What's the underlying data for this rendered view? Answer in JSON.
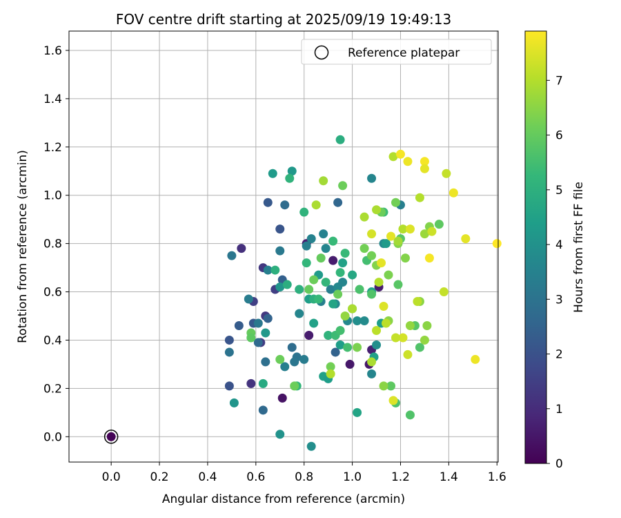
{
  "chart_data": {
    "type": "scatter",
    "title": "FOV centre drift starting at 2025/09/19 19:49:13",
    "xlabel": "Angular distance from reference (arcmin)",
    "ylabel": "Rotation from reference (arcmin)",
    "xlim": [
      -0.175,
      1.605
    ],
    "ylim": [
      -0.105,
      1.68
    ],
    "xticks": [
      0.0,
      0.2,
      0.4,
      0.6,
      0.8,
      1.0,
      1.2,
      1.4,
      1.6
    ],
    "xtick_labels": [
      "0.0",
      "0.2",
      "0.4",
      "0.6",
      "0.8",
      "1.0",
      "1.2",
      "1.4",
      "1.6"
    ],
    "yticks": [
      0.0,
      0.2,
      0.4,
      0.6,
      0.8,
      1.0,
      1.2,
      1.4,
      1.6
    ],
    "ytick_labels": [
      "0.0",
      "0.2",
      "0.4",
      "0.6",
      "0.8",
      "1.0",
      "1.2",
      "1.4",
      "1.6"
    ],
    "grid": true,
    "legend": {
      "placement": "top-right",
      "entries": [
        "Reference platepar"
      ]
    },
    "reference_point": {
      "label": "Reference platepar",
      "x": 0.0,
      "y": 0.0
    },
    "colorbar": {
      "label": "Hours from first FF file",
      "range": [
        0,
        7.9
      ],
      "ticks": [
        0,
        1,
        2,
        3,
        4,
        5,
        6,
        7
      ],
      "tick_labels": [
        "0",
        "1",
        "2",
        "3",
        "4",
        "5",
        "6",
        "7"
      ],
      "colormap_stops": [
        "#440154",
        "#482878",
        "#3e4989",
        "#31688e",
        "#26828e",
        "#1f9e89",
        "#35b779",
        "#6ece58",
        "#b5de2b",
        "#fde725"
      ]
    },
    "series": [
      {
        "name": "FOV centre drift",
        "points": [
          [
            0.0,
            0.0,
            0.05
          ],
          [
            0.54,
            0.78,
            1.1
          ],
          [
            0.59,
            0.56,
            1.5
          ],
          [
            0.58,
            0.22,
            1.2
          ],
          [
            0.71,
            0.16,
            0.4
          ],
          [
            0.82,
            0.42,
            0.6
          ],
          [
            0.62,
            0.39,
            1.4
          ],
          [
            0.64,
            0.5,
            1.3
          ],
          [
            0.68,
            0.61,
            1.5
          ],
          [
            0.81,
            0.8,
            0.7
          ],
          [
            0.92,
            0.73,
            0.6
          ],
          [
            0.99,
            0.3,
            0.5
          ],
          [
            1.08,
            0.36,
            0.7
          ],
          [
            1.11,
            0.62,
            0.6
          ],
          [
            1.07,
            0.3,
            0.5
          ],
          [
            0.63,
            0.7,
            1.3
          ],
          [
            0.49,
            0.21,
            2.0
          ],
          [
            0.49,
            0.4,
            2.1
          ],
          [
            0.53,
            0.46,
            2.3
          ],
          [
            0.59,
            0.47,
            2.2
          ],
          [
            0.65,
            0.97,
            2.2
          ],
          [
            0.7,
            0.86,
            2.1
          ],
          [
            0.71,
            0.65,
            2.4
          ],
          [
            0.63,
            0.11,
            2.7
          ],
          [
            0.64,
            0.31,
            2.9
          ],
          [
            0.61,
            0.39,
            2.7
          ],
          [
            0.65,
            0.49,
            2.5
          ],
          [
            0.72,
            0.96,
            2.8
          ],
          [
            0.75,
            0.37,
            2.8
          ],
          [
            0.77,
            0.33,
            3.0
          ],
          [
            0.93,
            0.35,
            2.5
          ],
          [
            0.94,
            0.97,
            2.6
          ],
          [
            0.49,
            0.35,
            3.0
          ],
          [
            0.5,
            0.75,
            3.1
          ],
          [
            0.57,
            0.57,
            3.3
          ],
          [
            0.61,
            0.47,
            3.2
          ],
          [
            0.65,
            0.69,
            3.4
          ],
          [
            0.7,
            0.77,
            3.2
          ],
          [
            0.72,
            0.29,
            3.4
          ],
          [
            0.76,
            0.31,
            3.1
          ],
          [
            0.78,
            0.51,
            3.6
          ],
          [
            0.8,
            0.32,
            3.3
          ],
          [
            0.81,
            0.79,
            3.4
          ],
          [
            0.83,
            0.82,
            3.5
          ],
          [
            0.87,
            0.56,
            3.4
          ],
          [
            0.88,
            0.84,
            3.5
          ],
          [
            0.89,
            0.78,
            3.6
          ],
          [
            0.91,
            0.61,
            3.4
          ],
          [
            0.93,
            0.55,
            3.7
          ],
          [
            0.94,
            0.62,
            3.7
          ],
          [
            0.96,
            0.64,
            3.6
          ],
          [
            0.98,
            0.48,
            3.7
          ],
          [
            1.02,
            0.48,
            3.9
          ],
          [
            1.05,
            0.48,
            3.8
          ],
          [
            1.08,
            0.26,
            3.6
          ],
          [
            1.1,
            0.38,
            3.9
          ],
          [
            1.13,
            0.8,
            3.7
          ],
          [
            1.08,
            1.07,
            3.6
          ],
          [
            1.2,
            0.96,
            3.4
          ],
          [
            0.83,
            -0.04,
            3.9
          ],
          [
            0.7,
            0.01,
            4.0
          ],
          [
            0.51,
            0.14,
            4.1
          ],
          [
            0.64,
            0.43,
            4.2
          ],
          [
            0.67,
            1.09,
            4.3
          ],
          [
            0.75,
            1.1,
            4.2
          ],
          [
            0.7,
            0.62,
            4.1
          ],
          [
            0.82,
            0.57,
            4.4
          ],
          [
            0.84,
            0.47,
            4.5
          ],
          [
            0.86,
            0.67,
            4.3
          ],
          [
            0.88,
            0.25,
            4.5
          ],
          [
            0.9,
            0.24,
            4.4
          ],
          [
            0.92,
            0.55,
            4.6
          ],
          [
            0.95,
            0.38,
            4.4
          ],
          [
            0.96,
            0.72,
            4.5
          ],
          [
            1.0,
            0.67,
            4.7
          ],
          [
            1.02,
            0.1,
            4.6
          ],
          [
            1.08,
            0.6,
            4.5
          ],
          [
            1.09,
            0.33,
            4.5
          ],
          [
            1.12,
            0.47,
            4.4
          ],
          [
            1.14,
            0.8,
            4.3
          ],
          [
            0.95,
            1.23,
            4.9
          ],
          [
            0.63,
            0.22,
            4.8
          ],
          [
            0.68,
            0.69,
            5.0
          ],
          [
            0.73,
            0.63,
            4.9
          ],
          [
            0.74,
            1.07,
            5.1
          ],
          [
            0.77,
            0.21,
            5.2
          ],
          [
            0.78,
            0.61,
            5.0
          ],
          [
            0.8,
            0.93,
            5.1
          ],
          [
            0.81,
            0.72,
            5.2
          ],
          [
            0.84,
            0.57,
            5.0
          ],
          [
            0.86,
            0.57,
            5.3
          ],
          [
            0.89,
            0.64,
            5.2
          ],
          [
            0.9,
            0.42,
            5.1
          ],
          [
            0.92,
            0.81,
            5.3
          ],
          [
            0.93,
            0.42,
            5.4
          ],
          [
            0.95,
            0.44,
            5.5
          ],
          [
            0.95,
            0.68,
            5.2
          ],
          [
            0.97,
            0.76,
            5.3
          ],
          [
            0.98,
            0.37,
            5.5
          ],
          [
            1.0,
            0.53,
            5.4
          ],
          [
            1.03,
            0.61,
            5.6
          ],
          [
            1.06,
            0.73,
            5.5
          ],
          [
            1.08,
            0.59,
            5.7
          ],
          [
            1.13,
            0.93,
            5.4
          ],
          [
            1.2,
            0.82,
            5.8
          ],
          [
            1.19,
            0.63,
            5.8
          ],
          [
            1.28,
            0.37,
            5.7
          ],
          [
            1.26,
            0.46,
            5.8
          ],
          [
            1.18,
            0.14,
            5.6
          ],
          [
            1.24,
            0.09,
            5.7
          ],
          [
            1.16,
            0.21,
            5.9
          ],
          [
            1.36,
            0.88,
            5.9
          ],
          [
            0.58,
            0.43,
            6.0
          ],
          [
            0.58,
            0.41,
            5.9
          ],
          [
            0.7,
            0.32,
            6.1
          ],
          [
            0.76,
            0.21,
            6.1
          ],
          [
            0.82,
            0.61,
            6.0
          ],
          [
            0.84,
            0.65,
            6.1
          ],
          [
            0.87,
            0.74,
            6.0
          ],
          [
            0.91,
            0.29,
            6.2
          ],
          [
            0.94,
            0.59,
            6.1
          ],
          [
            0.96,
            1.04,
            6.1
          ],
          [
            1.02,
            0.37,
            6.3
          ],
          [
            1.05,
            0.78,
            6.2
          ],
          [
            1.08,
            0.75,
            6.2
          ],
          [
            1.1,
            0.71,
            6.4
          ],
          [
            1.12,
            0.93,
            6.1
          ],
          [
            1.13,
            0.21,
            6.5
          ],
          [
            1.15,
            0.48,
            6.5
          ],
          [
            1.18,
            0.97,
            6.2
          ],
          [
            1.19,
            0.8,
            6.4
          ],
          [
            1.22,
            0.74,
            6.4
          ],
          [
            1.24,
            0.46,
            6.6
          ],
          [
            1.28,
            0.56,
            6.5
          ],
          [
            1.3,
            0.4,
            6.6
          ],
          [
            1.31,
            0.46,
            6.5
          ],
          [
            1.32,
            0.87,
            6.4
          ],
          [
            1.3,
            0.84,
            6.7
          ],
          [
            1.08,
            0.31,
            6.9
          ],
          [
            1.1,
            0.94,
            6.9
          ],
          [
            1.11,
            0.64,
            7.0
          ],
          [
            1.14,
            0.47,
            7.1
          ],
          [
            1.17,
            1.16,
            7.0
          ],
          [
            1.19,
            0.81,
            6.8
          ],
          [
            1.21,
            0.86,
            7.0
          ],
          [
            1.23,
            0.34,
            7.3
          ],
          [
            1.27,
            0.56,
            7.1
          ],
          [
            1.28,
            0.99,
            7.0
          ],
          [
            1.33,
            0.85,
            7.3
          ],
          [
            1.38,
            0.6,
            7.2
          ],
          [
            1.39,
            1.09,
            7.2
          ],
          [
            1.05,
            0.91,
            6.9
          ],
          [
            0.85,
            0.96,
            6.9
          ],
          [
            0.88,
            1.06,
            6.8
          ],
          [
            0.91,
            0.26,
            7.0
          ],
          [
            1.0,
            0.53,
            6.9
          ],
          [
            1.08,
            0.84,
            7.4
          ],
          [
            1.12,
            0.72,
            7.6
          ],
          [
            1.13,
            0.54,
            7.5
          ],
          [
            1.17,
            0.15,
            7.5
          ],
          [
            1.2,
            1.17,
            7.8
          ],
          [
            1.21,
            0.41,
            7.4
          ],
          [
            1.23,
            1.14,
            7.7
          ],
          [
            1.24,
            0.86,
            7.5
          ],
          [
            1.3,
            1.14,
            7.8
          ],
          [
            1.3,
            1.11,
            7.6
          ],
          [
            1.32,
            0.74,
            7.8
          ],
          [
            1.42,
            1.01,
            7.7
          ],
          [
            1.47,
            0.82,
            7.6
          ],
          [
            1.51,
            0.32,
            7.7
          ],
          [
            1.6,
            0.8,
            7.9
          ],
          [
            1.16,
            0.83,
            7.6
          ],
          [
            1.18,
            0.41,
            7.2
          ],
          [
            1.1,
            0.44,
            7.1
          ],
          [
            0.97,
            0.5,
            6.6
          ],
          [
            1.15,
            0.67,
            6.3
          ]
        ]
      }
    ]
  }
}
